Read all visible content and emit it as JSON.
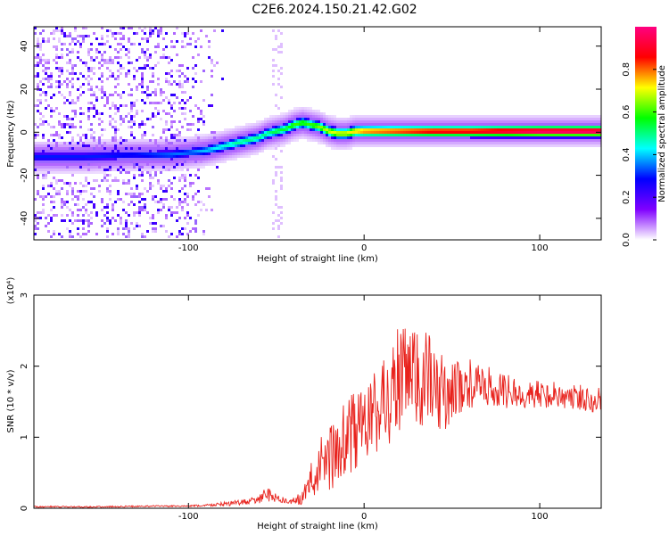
{
  "title": "C2E6.2024.150.21.42.G02",
  "chart_data": [
    {
      "type": "heatmap",
      "title": "C2E6.2024.150.21.42.G02",
      "xlabel": "Height of straight line (km)",
      "ylabel": "Frequency (Hz)",
      "xlim": [
        -188,
        135
      ],
      "ylim": [
        -50,
        49
      ],
      "x_ticks": [
        -100,
        0,
        100
      ],
      "x_tick_labels": [
        "-100",
        "0",
        "100"
      ],
      "y_ticks": [
        -40,
        -20,
        0,
        20,
        40
      ],
      "y_tick_labels": [
        "-40",
        "-20",
        "0",
        "20",
        "40"
      ],
      "grid": false,
      "colorbar": {
        "label": "Normalized spectral amplitude",
        "range": [
          0,
          1
        ],
        "ticks": [
          0.0,
          0.2,
          0.4,
          0.6,
          0.8
        ],
        "tick_labels": [
          "0.0",
          "0.2",
          "0.4",
          "0.6",
          "0.8"
        ],
        "colormap": [
          "#ffffff",
          "#8000ff",
          "#0000ff",
          "#00ffff",
          "#00ff00",
          "#ffff00",
          "#ff0000",
          "#ff0080"
        ]
      },
      "ridge": {
        "x": [
          -188,
          -160,
          -130,
          -110,
          -100,
          -90,
          -80,
          -70,
          -60,
          -55,
          -50,
          -45,
          -40,
          -35,
          -30,
          -25,
          -20,
          -15,
          -10,
          -5,
          0,
          20,
          40,
          60,
          80,
          100,
          120,
          135
        ],
        "y": [
          -12,
          -12,
          -11,
          -11,
          -10,
          -9,
          -7,
          -5,
          -3,
          -1,
          0,
          1,
          3,
          4,
          3,
          2,
          0,
          -1,
          -1,
          0,
          0,
          0,
          0,
          0,
          0,
          0,
          0,
          0
        ],
        "amplitude": [
          0.3,
          0.3,
          0.3,
          0.35,
          0.35,
          0.4,
          0.45,
          0.5,
          0.5,
          0.5,
          0.55,
          0.55,
          0.6,
          0.6,
          0.6,
          0.65,
          0.7,
          0.7,
          0.7,
          0.75,
          0.8,
          0.85,
          0.9,
          0.9,
          0.95,
          1.0,
          1.0,
          1.0
        ]
      },
      "noise_region": [
        -188,
        -105
      ]
    },
    {
      "type": "line",
      "xlabel": "Height of straight line (km)",
      "ylabel": "SNR (10 * v/v)",
      "y_multiplier_label": "(x10⁴)",
      "xlim": [
        -188,
        135
      ],
      "ylim": [
        0,
        3
      ],
      "x_ticks": [
        -100,
        0,
        100
      ],
      "x_tick_labels": [
        "-100",
        "0",
        "100"
      ],
      "y_ticks": [
        0,
        1,
        2,
        3
      ],
      "y_tick_labels": [
        "0",
        "1",
        "2",
        "3"
      ],
      "grid": false,
      "color": "#e8221c",
      "series": [
        {
          "x": [
            -188,
            -150,
            -120,
            -100,
            -90,
            -80,
            -70,
            -60,
            -55,
            -50,
            -45,
            -40,
            -35,
            -30,
            -25,
            -20,
            -15,
            -10,
            -5,
            0,
            5,
            10,
            15,
            20,
            25,
            30,
            35,
            40,
            45,
            50,
            60,
            70,
            80,
            90,
            100,
            110,
            120,
            130,
            135
          ],
          "values": [
            0.02,
            0.02,
            0.03,
            0.03,
            0.04,
            0.06,
            0.08,
            0.12,
            0.2,
            0.15,
            0.1,
            0.1,
            0.15,
            0.4,
            0.6,
            0.7,
            0.8,
            0.95,
            1.1,
            1.2,
            1.3,
            1.45,
            1.6,
            1.8,
            1.75,
            1.85,
            1.8,
            1.7,
            1.6,
            1.65,
            1.75,
            1.7,
            1.65,
            1.6,
            1.6,
            1.6,
            1.55,
            1.55,
            1.55
          ],
          "spread": [
            0.01,
            0.01,
            0.01,
            0.01,
            0.02,
            0.03,
            0.04,
            0.05,
            0.12,
            0.06,
            0.05,
            0.05,
            0.1,
            0.25,
            0.4,
            0.45,
            0.55,
            0.6,
            0.6,
            0.6,
            0.6,
            0.7,
            0.7,
            0.9,
            0.8,
            0.8,
            0.8,
            0.6,
            0.55,
            0.45,
            0.35,
            0.3,
            0.25,
            0.2,
            0.2,
            0.2,
            0.2,
            0.2,
            0.2
          ]
        }
      ]
    }
  ]
}
